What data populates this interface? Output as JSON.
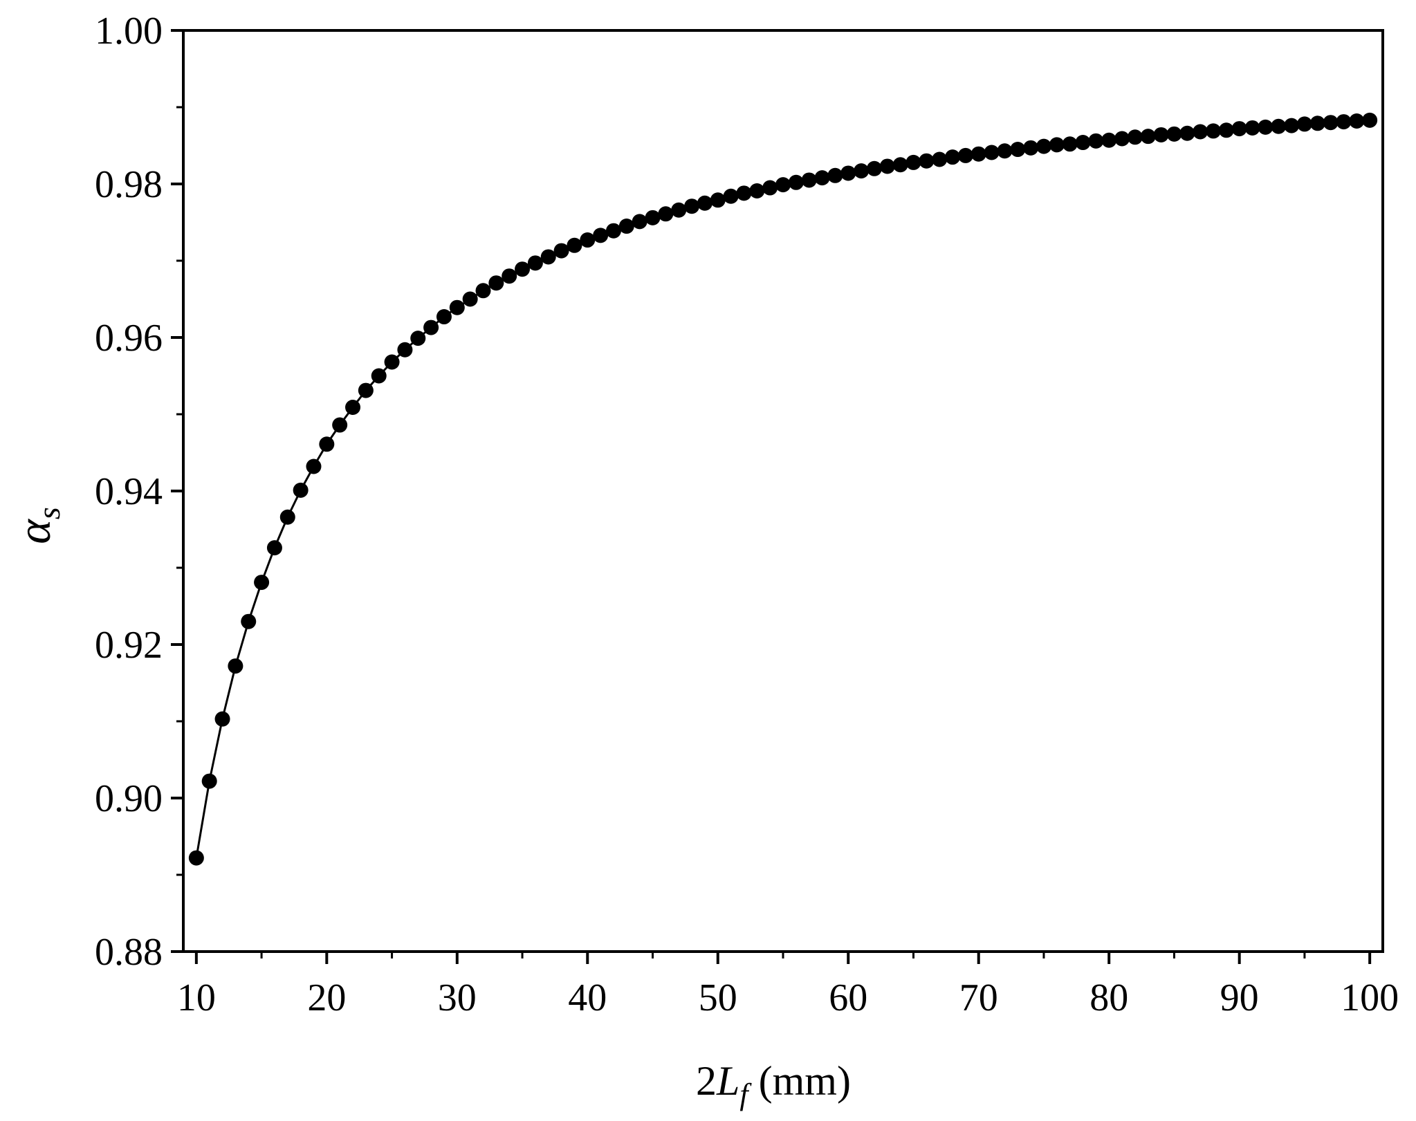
{
  "chart_data": {
    "type": "line",
    "xlabel_prefix": "2",
    "xlabel_var": "L",
    "xlabel_sub": "f",
    "xlabel_unit": " (mm)",
    "ylabel_var": "α",
    "ylabel_sub": "s",
    "xlim": [
      9,
      101
    ],
    "ylim": [
      0.88,
      1.0
    ],
    "xticks": [
      10,
      20,
      30,
      40,
      50,
      60,
      70,
      80,
      90,
      100
    ],
    "xtick_labels": [
      "10",
      "20",
      "30",
      "40",
      "50",
      "60",
      "70",
      "80",
      "90",
      "100"
    ],
    "yticks": [
      0.88,
      0.9,
      0.92,
      0.94,
      0.96,
      0.98,
      1.0
    ],
    "ytick_labels": [
      "0.88",
      "0.90",
      "0.92",
      "0.94",
      "0.96",
      "0.98",
      "1.00"
    ],
    "line_color": "#000000",
    "marker_color": "#000000",
    "series": [
      {
        "x": [
          10,
          11,
          12,
          13,
          14,
          15,
          16,
          17,
          18,
          19,
          20,
          21,
          22,
          23,
          24,
          25,
          26,
          27,
          28,
          29,
          30,
          31,
          32,
          33,
          34,
          35,
          36,
          37,
          38,
          39,
          40,
          41,
          42,
          43,
          44,
          45,
          46,
          47,
          48,
          49,
          50,
          51,
          52,
          53,
          54,
          55,
          56,
          57,
          58,
          59,
          60,
          61,
          62,
          63,
          64,
          65,
          66,
          67,
          68,
          69,
          70,
          71,
          72,
          73,
          74,
          75,
          76,
          77,
          78,
          79,
          80,
          81,
          82,
          83,
          84,
          85,
          86,
          87,
          88,
          89,
          90,
          91,
          92,
          93,
          94,
          95,
          96,
          97,
          98,
          99,
          100
        ],
        "y": [
          0.8922,
          0.9022,
          0.9103,
          0.9172,
          0.923,
          0.9281,
          0.9326,
          0.9366,
          0.9401,
          0.9432,
          0.9461,
          0.9486,
          0.9509,
          0.9531,
          0.955,
          0.9568,
          0.9584,
          0.9599,
          0.9613,
          0.9627,
          0.9639,
          0.965,
          0.9661,
          0.9671,
          0.968,
          0.9689,
          0.9697,
          0.9705,
          0.9713,
          0.972,
          0.9727,
          0.9733,
          0.9739,
          0.9745,
          0.9751,
          0.9756,
          0.9761,
          0.9766,
          0.9771,
          0.9775,
          0.9779,
          0.9784,
          0.9788,
          0.9791,
          0.9795,
          0.9799,
          0.9802,
          0.9805,
          0.9808,
          0.9811,
          0.9814,
          0.9817,
          0.982,
          0.9823,
          0.9825,
          0.9828,
          0.983,
          0.9832,
          0.9835,
          0.9837,
          0.9839,
          0.9841,
          0.9843,
          0.9845,
          0.9847,
          0.9849,
          0.9851,
          0.9852,
          0.9854,
          0.9856,
          0.9857,
          0.9859,
          0.9861,
          0.9862,
          0.9864,
          0.9865,
          0.9866,
          0.9868,
          0.9869,
          0.987,
          0.9872,
          0.9873,
          0.9874,
          0.9875,
          0.9876,
          0.9878,
          0.9879,
          0.988,
          0.9881,
          0.9882,
          0.9883
        ]
      }
    ]
  }
}
